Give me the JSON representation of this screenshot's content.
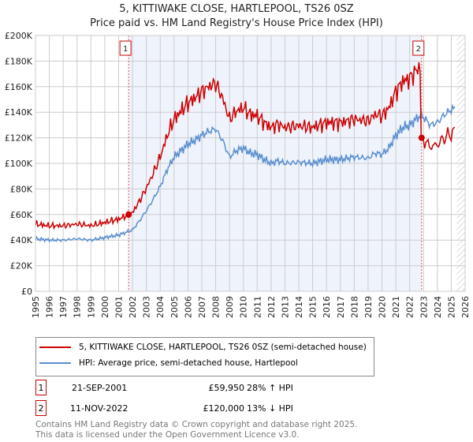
{
  "title": "5, KITTIWAKE CLOSE, HARTLEPOOL, TS26 0SZ",
  "subtitle": "Price paid vs. HM Land Registry's House Price Index (HPI)",
  "chart_data": {
    "type": "line",
    "xlim": [
      1995,
      2026
    ],
    "ylim": [
      0,
      200000
    ],
    "x_ticks": [
      "1995",
      "1996",
      "1997",
      "1998",
      "1999",
      "2000",
      "2001",
      "2002",
      "2003",
      "2004",
      "2005",
      "2006",
      "2007",
      "2008",
      "2009",
      "2010",
      "2011",
      "2012",
      "2013",
      "2014",
      "2015",
      "2016",
      "2017",
      "2018",
      "2019",
      "2020",
      "2021",
      "2022",
      "2023",
      "2024",
      "2025",
      "2026"
    ],
    "y_ticks": [
      {
        "v": 0,
        "label": "£0"
      },
      {
        "v": 20000,
        "label": "£20K"
      },
      {
        "v": 40000,
        "label": "£40K"
      },
      {
        "v": 60000,
        "label": "£60K"
      },
      {
        "v": 80000,
        "label": "£80K"
      },
      {
        "v": 100000,
        "label": "£100K"
      },
      {
        "v": 120000,
        "label": "£120K"
      },
      {
        "v": 140000,
        "label": "£140K"
      },
      {
        "v": 160000,
        "label": "£160K"
      },
      {
        "v": 180000,
        "label": "£180K"
      },
      {
        "v": 200000,
        "label": "£200K"
      }
    ],
    "grid": true,
    "shaded_range": [
      2001.72,
      2022.86
    ],
    "forecast_hatch_from": 2025.4,
    "series": [
      {
        "name": "HPI: Average price, semi-detached house, Hartlepool",
        "color": "#5b8fd0",
        "x": [
          1995,
          1996,
          1997,
          1998,
          1999,
          2000,
          2001,
          2001.72,
          2002,
          2002.5,
          2003,
          2003.5,
          2004,
          2004.5,
          2005,
          2005.5,
          2006,
          2006.5,
          2007,
          2007.5,
          2008,
          2008.5,
          2009,
          2009.5,
          2010,
          2010.5,
          2011,
          2011.5,
          2012,
          2012.5,
          2013,
          2014,
          2015,
          2016,
          2017,
          2018,
          2019,
          2019.5,
          2020,
          2020.5,
          2021,
          2021.5,
          2022,
          2022.5,
          2022.86,
          2023,
          2023.5,
          2024,
          2024.5,
          2025,
          2025.3
        ],
        "y": [
          41000,
          40000,
          40000,
          41000,
          40000,
          42000,
          44000,
          46800,
          48000,
          55000,
          63000,
          72000,
          82000,
          95000,
          105000,
          110000,
          115000,
          118000,
          122000,
          125000,
          127000,
          118000,
          105000,
          110000,
          112000,
          108000,
          107000,
          103000,
          100000,
          102000,
          100000,
          101000,
          100000,
          103000,
          103000,
          105000,
          104000,
          108000,
          107000,
          112000,
          122000,
          128000,
          130000,
          135000,
          138000,
          136000,
          130000,
          132000,
          138000,
          142000,
          143000
        ]
      },
      {
        "name": "5, KITTIWAKE CLOSE, HARTLEPOOL, TS26 0SZ (semi-detached house)",
        "color": "#cc0000",
        "derived": "HPI indexed to sale prices"
      }
    ],
    "sales": [
      {
        "id": "1",
        "x": 2001.72,
        "y": 59950
      },
      {
        "id": "2",
        "x": 2022.86,
        "y": 120000
      }
    ]
  },
  "legend": {
    "red_label": "5, KITTIWAKE CLOSE, HARTLEPOOL, TS26 0SZ (semi-detached house)",
    "blue_label": "HPI: Average price, semi-detached house, Hartlepool"
  },
  "sales_table": [
    {
      "id": "1",
      "date": "21-SEP-2001",
      "price": "£59,950",
      "hpi": "28% ↑ HPI"
    },
    {
      "id": "2",
      "date": "11-NOV-2022",
      "price": "£120,000",
      "hpi": "13% ↓ HPI"
    }
  ],
  "footer": {
    "line1": "Contains HM Land Registry data © Crown copyright and database right 2025.",
    "line2": "This data is licensed under the Open Government Licence v3.0."
  }
}
